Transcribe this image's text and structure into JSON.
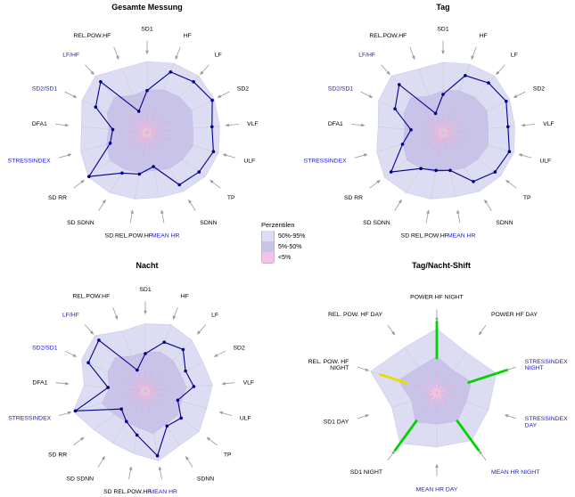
{
  "page": {
    "background": "#ffffff"
  },
  "legend": {
    "title": "Perzentilen",
    "entries": [
      {
        "label": "50%-95%",
        "color": "#dcdcf2"
      },
      {
        "label": "5%-50%",
        "color": "#c9c3e9"
      },
      {
        "label": "<5%",
        "color": "#f5c3e8"
      }
    ]
  },
  "colors": {
    "band_outer": "#dcdcf2",
    "band_outer_edge": "#c9cbee",
    "band_mid": "#c9c3e9",
    "band_mid_edge": "#bdb4e4",
    "band_inner": "#f5c3e8",
    "band_inner_edge": "#eda6da",
    "series": "#00008b",
    "axis_line": "#c4c4c4",
    "leader": "#999999",
    "label": "#000000",
    "label_highlight": "#1a1acd",
    "shift_green": "#00d400",
    "shift_yellow": "#e8dc00"
  },
  "chart_data": [
    {
      "id": "gesamte-messung",
      "type": "radar",
      "title": "Gesamte Messung",
      "axes": [
        {
          "label": "SD1",
          "highlight": false
        },
        {
          "label": "HF",
          "highlight": false
        },
        {
          "label": "LF",
          "highlight": false
        },
        {
          "label": "SD2",
          "highlight": false
        },
        {
          "label": "VLF",
          "highlight": false
        },
        {
          "label": "ULF",
          "highlight": false
        },
        {
          "label": "TP",
          "highlight": false
        },
        {
          "label": "SDNN",
          "highlight": false
        },
        {
          "label": "MEAN HR",
          "highlight": true
        },
        {
          "label": "SD REL.POW.HF",
          "highlight": false
        },
        {
          "label": "SD SDNN",
          "highlight": false
        },
        {
          "label": "SD RR",
          "highlight": false
        },
        {
          "label": "STRESSINDEX",
          "highlight": true
        },
        {
          "label": "DFA1",
          "highlight": false
        },
        {
          "label": "SD2/SD1",
          "highlight": true
        },
        {
          "label": "LF/HF",
          "highlight": true
        },
        {
          "label": "REL.POW.HF",
          "highlight": false
        }
      ],
      "series_values": [
        0.55,
        0.85,
        0.9,
        0.95,
        0.85,
        0.9,
        0.85,
        0.8,
        0.45,
        0.55,
        0.62,
        0.95,
        0.5,
        0.45,
        0.75,
        0.9,
        0.3
      ],
      "bands": {
        "p95": [
          0.93,
          0.97,
          1.0,
          0.98,
          0.95,
          0.97,
          0.95,
          0.9,
          0.86,
          0.88,
          0.92,
          0.96,
          0.9,
          0.86,
          0.95,
          1.0,
          0.9
        ],
        "p50": [
          0.56,
          0.6,
          0.63,
          0.65,
          0.6,
          0.62,
          0.58,
          0.55,
          0.5,
          0.53,
          0.56,
          0.6,
          0.55,
          0.5,
          0.58,
          0.63,
          0.52
        ],
        "p5": [
          0.3,
          0.34,
          0.32,
          0.38,
          0.34,
          0.36,
          0.3,
          0.28,
          0.26,
          0.3,
          0.32,
          0.35,
          0.3,
          0.28,
          0.33,
          0.36,
          0.28
        ]
      },
      "segments": []
    },
    {
      "id": "tag",
      "type": "radar",
      "title": "Tag",
      "axes": [
        {
          "label": "SD1",
          "highlight": false
        },
        {
          "label": "HF",
          "highlight": false
        },
        {
          "label": "LF",
          "highlight": false
        },
        {
          "label": "SD2",
          "highlight": false
        },
        {
          "label": "VLF",
          "highlight": false
        },
        {
          "label": "ULF",
          "highlight": false
        },
        {
          "label": "TP",
          "highlight": false
        },
        {
          "label": "SDNN",
          "highlight": false
        },
        {
          "label": "MEAN HR",
          "highlight": true
        },
        {
          "label": "SD REL.POW.HF",
          "highlight": false
        },
        {
          "label": "SD SDNN",
          "highlight": false
        },
        {
          "label": "SD RR",
          "highlight": false
        },
        {
          "label": "STRESSINDEX",
          "highlight": true
        },
        {
          "label": "DFA1",
          "highlight": false
        },
        {
          "label": "SD2/SD1",
          "highlight": true
        },
        {
          "label": "LF/HF",
          "highlight": true
        },
        {
          "label": "REL.POW.HF",
          "highlight": false
        }
      ],
      "series_values": [
        0.5,
        0.8,
        0.88,
        0.92,
        0.85,
        0.9,
        0.85,
        0.75,
        0.5,
        0.5,
        0.55,
        0.85,
        0.55,
        0.42,
        0.7,
        0.85,
        0.27
      ],
      "bands": {
        "p95": [
          0.92,
          0.96,
          1.0,
          0.97,
          0.94,
          0.96,
          0.94,
          0.9,
          0.85,
          0.88,
          0.92,
          0.96,
          0.9,
          0.85,
          0.94,
          1.0,
          0.89
        ],
        "p50": [
          0.55,
          0.59,
          0.62,
          0.64,
          0.59,
          0.61,
          0.57,
          0.54,
          0.5,
          0.52,
          0.55,
          0.59,
          0.54,
          0.5,
          0.57,
          0.62,
          0.51
        ],
        "p5": [
          0.29,
          0.33,
          0.31,
          0.37,
          0.33,
          0.35,
          0.29,
          0.27,
          0.25,
          0.29,
          0.31,
          0.34,
          0.29,
          0.27,
          0.32,
          0.35,
          0.27
        ]
      },
      "segments": []
    },
    {
      "id": "nacht",
      "type": "radar",
      "title": "Nacht",
      "axes": [
        {
          "label": "SD1",
          "highlight": false
        },
        {
          "label": "HF",
          "highlight": false
        },
        {
          "label": "LF",
          "highlight": false
        },
        {
          "label": "SD2",
          "highlight": false
        },
        {
          "label": "VLF",
          "highlight": false
        },
        {
          "label": "ULF",
          "highlight": false
        },
        {
          "label": "TP",
          "highlight": false
        },
        {
          "label": "SDNN",
          "highlight": false
        },
        {
          "label": "MEAN HR",
          "highlight": true
        },
        {
          "label": "SD REL.POW.HF",
          "highlight": false
        },
        {
          "label": "SD SDNN",
          "highlight": false
        },
        {
          "label": "SD RR",
          "highlight": false
        },
        {
          "label": "STRESSINDEX",
          "highlight": true
        },
        {
          "label": "DFA1",
          "highlight": false
        },
        {
          "label": "SD2/SD1",
          "highlight": true
        },
        {
          "label": "LF/HF",
          "highlight": true
        },
        {
          "label": "REL.POW.HF",
          "highlight": false
        }
      ],
      "series_values": [
        0.5,
        0.7,
        0.75,
        0.6,
        0.65,
        0.45,
        0.6,
        0.55,
        0.88,
        0.6,
        0.48,
        0.4,
        0.97,
        0.5,
        0.85,
        0.92,
        0.3
      ],
      "bands": {
        "p95": [
          0.9,
          0.95,
          0.92,
          0.86,
          0.9,
          0.85,
          0.9,
          0.86,
          0.95,
          0.85,
          0.82,
          0.86,
          1.0,
          0.82,
          0.95,
          1.0,
          0.86
        ],
        "p50": [
          0.52,
          0.56,
          0.55,
          0.52,
          0.55,
          0.5,
          0.54,
          0.52,
          0.58,
          0.5,
          0.48,
          0.52,
          0.6,
          0.48,
          0.56,
          0.6,
          0.5
        ],
        "p5": [
          0.28,
          0.32,
          0.3,
          0.28,
          0.32,
          0.26,
          0.3,
          0.28,
          0.34,
          0.26,
          0.25,
          0.28,
          0.36,
          0.25,
          0.32,
          0.36,
          0.26
        ]
      },
      "segments": []
    },
    {
      "id": "tag-nacht-shift",
      "type": "radar",
      "title": "Tag/Nacht-Shift",
      "axes": [
        {
          "label": "POWER HF NIGHT",
          "highlight": false
        },
        {
          "label": "POWER HF DAY",
          "highlight": false
        },
        {
          "label": "STRESSINDEX\nNIGHT",
          "highlight": true
        },
        {
          "label": "STRESSINDEX\nDAY",
          "highlight": true
        },
        {
          "label": "MEAN HR NIGHT",
          "highlight": true
        },
        {
          "label": "MEAN HR DAY",
          "highlight": true
        },
        {
          "label": "SD1 NIGHT",
          "highlight": false
        },
        {
          "label": "SD1 DAY",
          "highlight": false
        },
        {
          "label": "REL. POW. HF\nNIGHT",
          "highlight": false
        },
        {
          "label": "REL. POW. HF DAY",
          "highlight": false
        }
      ],
      "series_values": null,
      "bands": {
        "p95": [
          0.92,
          0.72,
          0.9,
          0.78,
          0.85,
          0.78,
          0.9,
          0.68,
          1.0,
          0.8
        ],
        "p50": [
          0.52,
          0.4,
          0.52,
          0.44,
          0.5,
          0.45,
          0.52,
          0.38,
          0.58,
          0.45
        ],
        "p5": [
          0.3,
          0.22,
          0.3,
          0.25,
          0.3,
          0.27,
          0.3,
          0.2,
          0.34,
          0.25
        ]
      },
      "segments": [
        {
          "axis": 0,
          "from": 0.5,
          "to": 1.02,
          "color": "#00d400"
        },
        {
          "axis": 2,
          "from": 0.48,
          "to": 1.05,
          "color": "#00d400"
        },
        {
          "axis": 4,
          "from": 0.5,
          "to": 1.02,
          "color": "#00d400"
        },
        {
          "axis": 6,
          "from": 0.5,
          "to": 1.02,
          "color": "#00d400"
        },
        {
          "axis": 8,
          "from": 0.45,
          "to": 0.85,
          "color": "#e8dc00"
        }
      ]
    }
  ]
}
